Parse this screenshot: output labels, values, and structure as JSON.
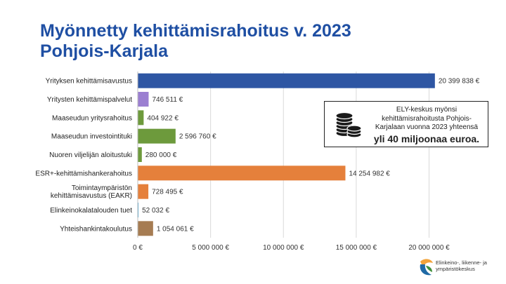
{
  "title_line1": "Myönnetty kehittämisrahoitus v. 2023",
  "title_line2": "Pohjois-Karjala",
  "callout": {
    "line1": "ELY-keskus myönsi",
    "line2": "kehittämisrahoitusta Pohjois-",
    "line3": "Karjalaan vuonna 2023 yhteensä",
    "emphasis": "yli 40 miljoonaa euroa.",
    "icon": "coins-icon"
  },
  "logo": {
    "line1": "Elinkeino-, liikenne- ja",
    "line2": "ympäristökeskus",
    "icon": "ely-logo-icon"
  },
  "chart_data": {
    "type": "bar",
    "orientation": "horizontal",
    "categories": [
      "Yrityksen kehittämisavustus",
      "Yritysten kehittämispalvelut",
      "Maaseudun yritysrahoitus",
      "Maaseudun investointituki",
      "Nuoren viljelijän aloitustuki",
      "ESR+-kehittämishankerahoitus",
      "Toimintaympäristön kehittämisavustus (EAKR)",
      "Elinkeinokalatalouden tuet",
      "Yhteishankintakoulutus"
    ],
    "category_lines": [
      [
        "Yrityksen kehittämisavustus"
      ],
      [
        "Yritysten kehittämispalvelut"
      ],
      [
        "Maaseudun yritysrahoitus"
      ],
      [
        "Maaseudun investointituki"
      ],
      [
        "Nuoren viljelijän aloitustuki"
      ],
      [
        "ESR+-kehittämishankerahoitus"
      ],
      [
        "Toimintaympäristön",
        "kehittämisavustus (EAKR)"
      ],
      [
        "Elinkeinokalatalouden tuet"
      ],
      [
        "Yhteishankintakoulutus"
      ]
    ],
    "values": [
      20399838,
      746511,
      404922,
      2596760,
      280000,
      14254982,
      728495,
      52032,
      1054061
    ],
    "value_labels": [
      "20 399 838 €",
      "746 511 €",
      "404 922 €",
      "2 596 760 €",
      "280 000 €",
      "14 254 982 €",
      "728 495 €",
      "52 032 €",
      "1 054 061 €"
    ],
    "colors": [
      "#2e56a3",
      "#9b7fd1",
      "#6d9a3c",
      "#6d9a3c",
      "#6d9a3c",
      "#e5803b",
      "#e5803b",
      "#4aa8d8",
      "#a67c52"
    ],
    "xlim": [
      0,
      22000000
    ],
    "ticks": [
      0,
      5000000,
      10000000,
      15000000,
      20000000
    ],
    "tick_labels": [
      "0 €",
      "5 000 000 €",
      "10 000 000 €",
      "15 000 000 €",
      "20 000 000 €"
    ],
    "grid": true,
    "gridline_color": "#d9d9d9",
    "xlabel": "",
    "ylabel": ""
  }
}
